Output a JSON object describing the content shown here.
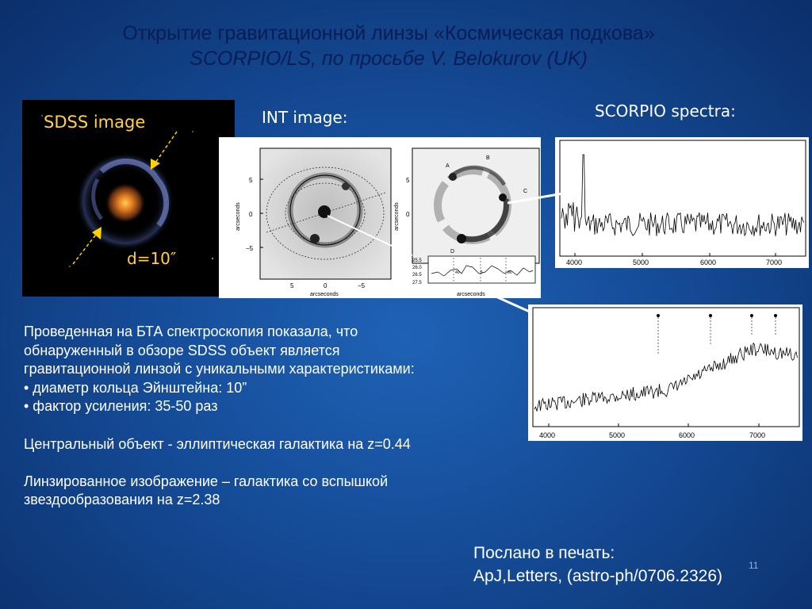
{
  "title": {
    "line1": "Открытие гравитационной линзы «Космическая подкова»",
    "line2": "SCORPIO/LS, по просьбе V. Belokurov (UK)"
  },
  "sdss": {
    "label": "SDSS image",
    "diameter": "d=10″"
  },
  "int": {
    "label": "INT image:",
    "axis_label_y": "arcseconds",
    "axis_label_x": "arcseconds",
    "yticks": [
      "5",
      "0",
      "−5"
    ],
    "xticks": [
      "5",
      "0",
      "−5"
    ],
    "markers": [
      "A",
      "B",
      "C",
      "D"
    ],
    "inset_yticks": [
      "25.5",
      "26.0",
      "26.5",
      "27.5"
    ],
    "inset_numbers": [
      "40",
      "5",
      "90"
    ]
  },
  "scorpio": {
    "label": "SCORPIO spectra:",
    "spec1_xticks": [
      "4000",
      "5000",
      "6000",
      "7000"
    ],
    "spec2_xticks": [
      "4000",
      "5000",
      "6000",
      "7000"
    ]
  },
  "body": {
    "p1": "Проведенная на БТА спектроскопия показала, что",
    "p2": "обнаруженный в обзоре SDSS объект является",
    "p3": "гравитационной линзой с уникальными характеристиками:",
    "p4": "• диаметр кольца Эйнштейна: 10”",
    "p5": "• фактор усиления: 35-50 раз",
    "p6": "Центральный объект -   эллиптическая галактика на z=0.44",
    "p7": "Линзированное изображение – галактика со вспышкой",
    "p8": "звездообразования на z=2.38"
  },
  "footer": {
    "sent_line1": "Послано в печать:",
    "sent_line2": "ApJ,Letters, (astro-ph/0706.2326)",
    "page_number": "11"
  },
  "colors": {
    "title": "#0a1c55",
    "text": "#ffffff",
    "sdss_label": "#ffd24a",
    "arrow": "#ffd200",
    "connector": "#ffffff"
  }
}
